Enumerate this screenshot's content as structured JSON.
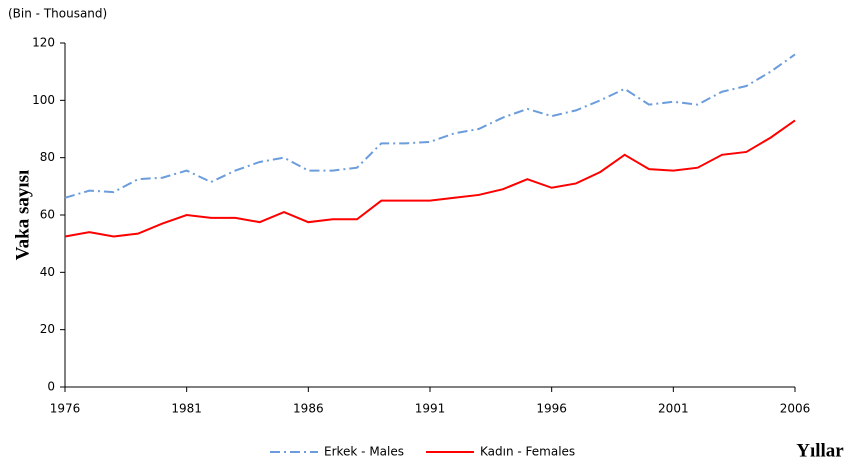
{
  "chart_data": {
    "type": "line",
    "subtitle": "(Bin - Thousand)",
    "y_label": "Vaka sayısı",
    "x_label": "Yıllar",
    "x": [
      1976,
      1977,
      1978,
      1979,
      1980,
      1981,
      1982,
      1983,
      1984,
      1985,
      1986,
      1987,
      1988,
      1989,
      1990,
      1991,
      1992,
      1993,
      1994,
      1995,
      1996,
      1997,
      1998,
      1999,
      2000,
      2001,
      2002,
      2003,
      2004,
      2005,
      2006
    ],
    "series": [
      {
        "name": "Erkek - Males",
        "color": "#6b9ddc",
        "dash": "dashdot",
        "values": [
          66,
          68.5,
          68,
          72.5,
          73,
          75.5,
          71.5,
          75.5,
          78.5,
          80,
          75.5,
          75.5,
          76.5,
          85,
          85,
          85.5,
          88.5,
          90,
          94,
          97,
          94.5,
          96.5,
          100,
          104,
          98.5,
          99.5,
          98.5,
          103,
          105,
          110,
          116
        ]
      },
      {
        "name": "Kadın - Females",
        "color": "#ff0000",
        "dash": "solid",
        "values": [
          52.5,
          54,
          52.5,
          53.5,
          57,
          60,
          59,
          59,
          57.5,
          61,
          57.5,
          58.5,
          58.5,
          65,
          65,
          65,
          66,
          67,
          69,
          72.5,
          69.5,
          71,
          75,
          81,
          76,
          75.5,
          76.5,
          81,
          82,
          87,
          93
        ]
      }
    ],
    "xlim": [
      1976,
      2006
    ],
    "xticks": [
      1976,
      1981,
      1986,
      1991,
      1996,
      2001,
      2006
    ],
    "ylim": [
      0,
      120
    ],
    "yticks": [
      0,
      20,
      40,
      60,
      80,
      100,
      120
    ],
    "grid": false,
    "legend": "bottom"
  }
}
